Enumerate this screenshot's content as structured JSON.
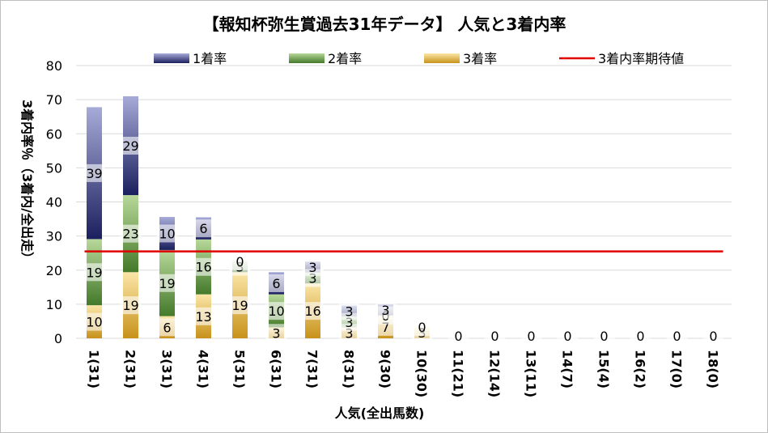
{
  "chart_data": {
    "type": "bar",
    "stacked": true,
    "title": "【報知杯弥生賞過去31年データ】 人気と3着内率",
    "xlabel": "人気(全出馬数)",
    "ylabel": "3着内率％（3着内/全出走）",
    "ylim": [
      0,
      80
    ],
    "yticks": [
      0,
      10,
      20,
      30,
      40,
      50,
      60,
      70,
      80
    ],
    "grid": true,
    "legend_position": "top",
    "categories": [
      "1(31)",
      "2(31)",
      "3(31)",
      "4(31)",
      "5(31)",
      "6(31)",
      "7(31)",
      "8(31)",
      "9(30)",
      "10(30)",
      "11(21)",
      "12(14)",
      "13(11)",
      "14(7)",
      "15(4)",
      "16(2)",
      "17(0)",
      "18(0)"
    ],
    "series": [
      {
        "name": "3着率",
        "color": "#d4a02a",
        "values": [
          9.7,
          19.4,
          6.5,
          12.9,
          19.4,
          3.2,
          16.1,
          3.2,
          6.7,
          3.3,
          0,
          0,
          0,
          0,
          0,
          0,
          0,
          0
        ],
        "labels": [
          "10",
          "19",
          "6",
          "13",
          "19",
          "3",
          "16",
          "3",
          "7",
          "3",
          "",
          "",
          "",
          "",
          "",
          "",
          "",
          ""
        ]
      },
      {
        "name": "2着率",
        "color": "#5f9a3c",
        "values": [
          19.4,
          22.6,
          19.4,
          16.1,
          3.2,
          9.7,
          3.2,
          3.2,
          0,
          0,
          0,
          0,
          0,
          0,
          0,
          0,
          0,
          0
        ],
        "labels": [
          "19",
          "23",
          "19",
          "16",
          "3",
          "10",
          "3",
          "3",
          "0",
          "",
          "",
          "",
          "",
          "",
          "",
          "",
          "",
          ""
        ]
      },
      {
        "name": "1着率",
        "color": "#2f3584",
        "values": [
          38.7,
          29.0,
          9.7,
          6.5,
          0,
          6.5,
          3.2,
          3.2,
          3.3,
          0,
          0,
          0,
          0,
          0,
          0,
          0,
          0,
          0
        ],
        "labels": [
          "39",
          "29",
          "10",
          "6",
          "0",
          "6",
          "3",
          "3",
          "3",
          "0",
          "0",
          "0",
          "0",
          "0",
          "0",
          "0",
          "0",
          "0"
        ]
      }
    ],
    "reference_line": {
      "name": "3着内率期待値",
      "value": 25.5,
      "color": "#e00000"
    }
  }
}
